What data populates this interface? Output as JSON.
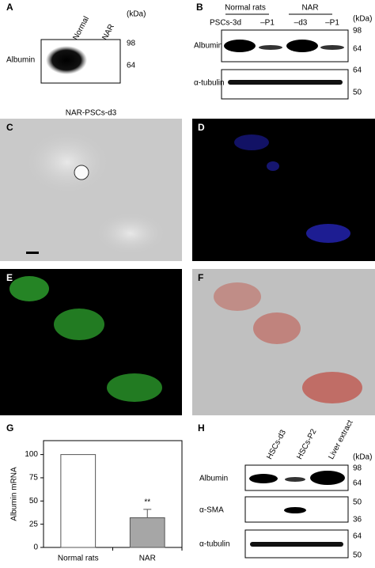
{
  "figure": {
    "panel_labels": [
      "A",
      "B",
      "C",
      "D",
      "E",
      "F",
      "G",
      "H"
    ],
    "a": {
      "columns": [
        "Normal",
        "NAR"
      ],
      "rows": [
        "Albumin"
      ],
      "unit": "(kDa)",
      "markers": [
        "98",
        "64"
      ]
    },
    "b": {
      "groups": [
        "Normal rats",
        "NAR"
      ],
      "columns": [
        "PSCs-3d",
        "–P1",
        "–d3",
        "–P1"
      ],
      "rows": [
        "Albumin",
        "α-tubulin"
      ],
      "unit": "(kDa)",
      "markers": [
        "98",
        "64",
        "64",
        "50"
      ]
    },
    "c": {
      "title": "NAR-PSCs-d3"
    },
    "h": {
      "columns": [
        "HSCs-d3",
        "HSCs-P2",
        "Liver extract"
      ],
      "rows": [
        "Albumin",
        "α-SMA",
        "α-tubulin"
      ],
      "unit": "(kDa)",
      "markers": [
        "98",
        "64",
        "50",
        "36",
        "64",
        "50"
      ]
    }
  },
  "chart_data": {
    "type": "bar",
    "ylabel": "Albumin mRNA",
    "categories": [
      "Normal rats",
      "NAR"
    ],
    "values": [
      100,
      32
    ],
    "errors": [
      null,
      9
    ],
    "colors": [
      "#ffffff",
      "#a6a6a6"
    ],
    "annotations": [
      {
        "category": "NAR",
        "text": "**"
      }
    ],
    "ylim": [
      0,
      115
    ],
    "yticks": [
      0,
      25,
      50,
      75,
      100
    ]
  }
}
